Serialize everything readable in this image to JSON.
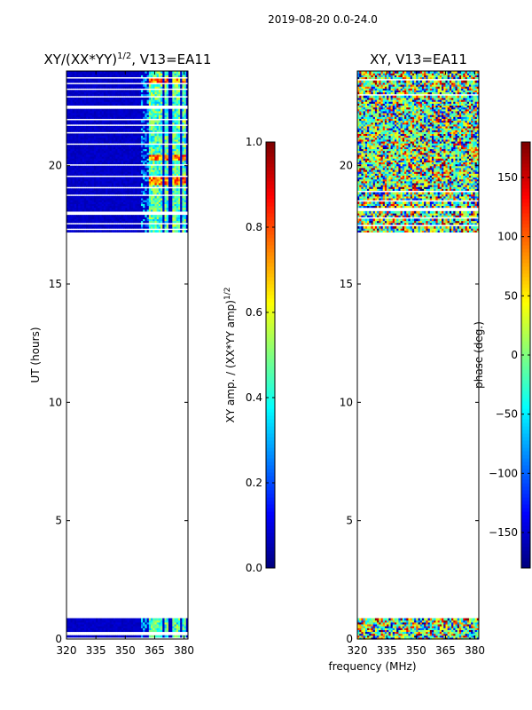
{
  "suptitle": "2019-08-20 0.0-24.0",
  "xlabel_shared": "frequency (MHz)",
  "colors": {
    "jet": [
      "#00007f",
      "#0000ff",
      "#007fff",
      "#00ffff",
      "#7fff7f",
      "#ffff00",
      "#ff7f00",
      "#ff0000",
      "#7f0000"
    ],
    "white": "#ffffff",
    "black": "#000000"
  },
  "chart_data": [
    {
      "type": "heatmap",
      "title_main": "XY/(XX*YY)",
      "title_sup": "1/2",
      "title_suffix": ", V13=EA11",
      "xlabel": "",
      "ylabel": "UT (hours)",
      "xlim": [
        320,
        382
      ],
      "ylim": [
        0,
        24
      ],
      "xticks": [
        320,
        335,
        350,
        365,
        380
      ],
      "yticks": [
        0,
        5,
        10,
        15,
        20
      ],
      "xtick_labels": [
        "320",
        "335",
        "350",
        "365",
        "380"
      ],
      "ytick_labels": [
        "0",
        "5",
        "10",
        "15",
        "20"
      ],
      "data_intervals_hours": [
        [
          0.1,
          0.9
        ],
        [
          17.2,
          24.0
        ]
      ],
      "blank_gaps_hours": [
        [
          0.2,
          0.28
        ],
        [
          17.3,
          17.38
        ],
        [
          17.55,
          17.6
        ],
        [
          17.95,
          18.05
        ],
        [
          18.3,
          18.35
        ],
        [
          18.72,
          18.8
        ],
        [
          19.0,
          19.1
        ],
        [
          19.55,
          19.62
        ],
        [
          20.0,
          20.08
        ],
        [
          20.9,
          20.98
        ],
        [
          21.35,
          21.42
        ],
        [
          21.65,
          21.72
        ],
        [
          21.95,
          22.02
        ],
        [
          22.4,
          22.55
        ],
        [
          22.9,
          22.95
        ],
        [
          23.2,
          23.28
        ],
        [
          23.45,
          23.5
        ],
        [
          23.7,
          23.76
        ]
      ],
      "quiet_level": 0.05,
      "bright_band_mhz": [
        [
          362,
          369
        ],
        [
          370,
          372
        ],
        [
          374,
          378
        ],
        [
          379,
          381
        ]
      ],
      "bright_level": 0.45,
      "peak_times_hours": [
        [
          19.2,
          19.5
        ],
        [
          20.2,
          20.5
        ],
        [
          23.4,
          23.7
        ]
      ],
      "peak_level": 0.75,
      "colorbar": {
        "label_main": "XY amp. / (XX*YY amp)",
        "label_sup": "1/2",
        "range": [
          0.0,
          1.0
        ],
        "ticks": [
          0.0,
          0.2,
          0.4,
          0.6,
          0.8,
          1.0
        ],
        "tick_labels": [
          "0.0",
          "0.2",
          "0.4",
          "0.6",
          "0.8",
          "1.0"
        ]
      }
    },
    {
      "type": "heatmap",
      "title_main": "XY, V13=EA11",
      "xlabel": "frequency (MHz)",
      "ylabel": "",
      "xlim": [
        320,
        382
      ],
      "ylim": [
        0,
        24
      ],
      "xticks": [
        320,
        335,
        350,
        365,
        380
      ],
      "yticks": [
        0,
        5,
        10,
        15,
        20
      ],
      "xtick_labels": [
        "320",
        "335",
        "350",
        "365",
        "380"
      ],
      "ytick_labels": [
        "0",
        "5",
        "10",
        "15",
        "20"
      ],
      "data_intervals_hours": [
        [
          0.0,
          0.9
        ],
        [
          17.2,
          24.0
        ]
      ],
      "blank_gaps_hours": [
        [
          0.3,
          0.35
        ],
        [
          17.4,
          17.48
        ],
        [
          17.75,
          17.8
        ],
        [
          18.1,
          18.2
        ],
        [
          18.5,
          18.55
        ],
        [
          18.85,
          18.95
        ],
        [
          21.8,
          21.85
        ],
        [
          22.3,
          22.35
        ],
        [
          22.95,
          23.02
        ],
        [
          23.6,
          23.65
        ]
      ],
      "value_range_deg": [
        -180,
        180
      ],
      "note": "phase randomly distributed (noisy)",
      "colorbar": {
        "label_main": "phase (deg.)",
        "range": [
          -180,
          180
        ],
        "ticks": [
          -150,
          -100,
          -50,
          0,
          50,
          100,
          150
        ],
        "tick_labels": [
          "−150",
          "−100",
          "−50",
          "0",
          "50",
          "100",
          "150"
        ]
      }
    }
  ]
}
